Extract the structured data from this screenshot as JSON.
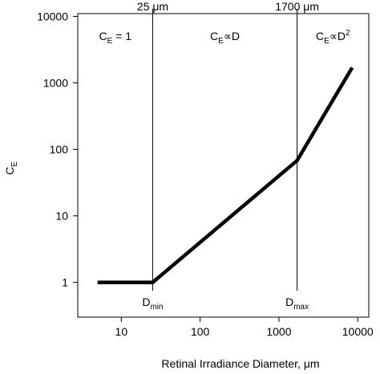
{
  "chart_data": {
    "type": "line",
    "x_label": "Retinal Irradiance Diameter,  μm",
    "y_label": {
      "main": "C",
      "sub": "E"
    },
    "log_x": true,
    "log_y": true,
    "xlim": [
      2.8,
      13800
    ],
    "ylim": [
      0.3,
      11000
    ],
    "xticks": [
      10,
      100,
      1000,
      10000
    ],
    "yticks": [
      1,
      10,
      100,
      1000,
      10000
    ],
    "series": [
      {
        "color": "#000000",
        "x": [
          5,
          25,
          1700,
          8500
        ],
        "values": [
          1,
          1,
          68,
          1700
        ]
      }
    ],
    "vlines": [
      {
        "x": 25,
        "label": "25 μm",
        "marker": {
          "main": "D",
          "sub": "min"
        }
      },
      {
        "x": 1700,
        "label": "1700 μm",
        "marker": {
          "main": "D",
          "sub": "max"
        }
      }
    ],
    "regions": [
      {
        "main": "C",
        "sub": "E",
        "tail": " = 1"
      },
      {
        "main": "C",
        "sub": "E",
        "tail": "∝D"
      },
      {
        "main": "C",
        "sub": "E",
        "tail": "∝D",
        "sup": "2"
      }
    ]
  }
}
